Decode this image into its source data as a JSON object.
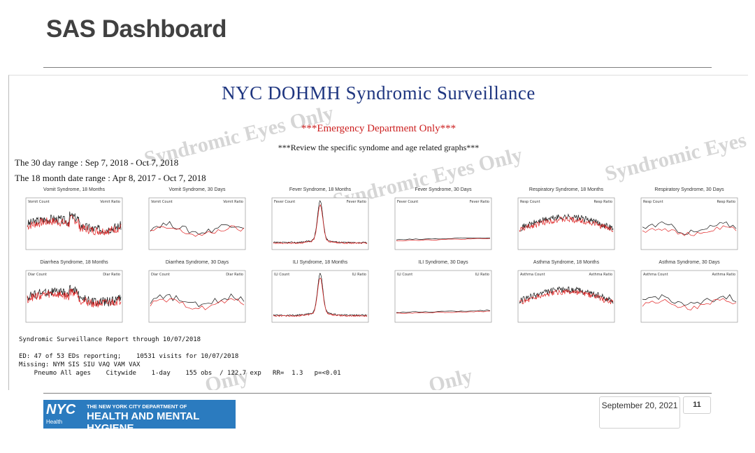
{
  "slide": {
    "title": "SAS Dashboard",
    "date": "September 20, 2021",
    "page_number": "11"
  },
  "dashboard": {
    "title": "NYC DOHMH Syndromic Surveillance",
    "subtitle_red": "***Emergency Department Only***",
    "subtitle": "***Review the specific syndome and age related graphs***",
    "range_30": "The 30 day range : Sep 7, 2018 - Oct 7, 2018",
    "range_18": "The 18 month date range : Apr 8, 2017 - Oct 7, 2018",
    "watermark_text": "Syndromic Eyes Only",
    "charts": [
      {
        "title": "Vomit Syndrome, 18 Months",
        "legend_left": "Vomit Count",
        "legend_right": "Vomit Ratio",
        "type": "long"
      },
      {
        "title": "Vomit Syndrome, 30 Days",
        "legend_left": "Vomit Count",
        "legend_right": "Vomit Ratio",
        "type": "short"
      },
      {
        "title": "Fever Syndrome, 18 Months",
        "legend_left": "Fever Count",
        "legend_right": "Fever Ratio",
        "type": "peak"
      },
      {
        "title": "Fever Syndrome, 30 Days",
        "legend_left": "Fever Count",
        "legend_right": "Fever Ratio",
        "type": "flat"
      },
      {
        "title": "Respiratory Syndrome, 18 Months",
        "legend_left": "Resp Count",
        "legend_right": "Resp Ratio",
        "type": "seasonal"
      },
      {
        "title": "Respiratory Syndrome, 30 Days",
        "legend_left": "Resp Count",
        "legend_right": "Resp Ratio",
        "type": "short"
      },
      {
        "title": "Diarrhea Syndrome, 18 Months",
        "legend_left": "Diar Count",
        "legend_right": "Diar Ratio",
        "type": "long"
      },
      {
        "title": "Diarrhea Syndrome, 30 Days",
        "legend_left": "Diar Count",
        "legend_right": "Diar Ratio",
        "type": "short"
      },
      {
        "title": "ILI Syndrome, 18 Months",
        "legend_left": "ILI Count",
        "legend_right": "ILI Ratio",
        "type": "peak"
      },
      {
        "title": "ILI Syndrome, 30 Days",
        "legend_left": "ILI Count",
        "legend_right": "ILI Ratio",
        "type": "flat"
      },
      {
        "title": "Asthma Syndrome, 18 Months",
        "legend_left": "Asthma Count",
        "legend_right": "Asthma Ratio",
        "type": "seasonal"
      },
      {
        "title": "Asthma Syndrome, 30 Days",
        "legend_left": "Asthma Count",
        "legend_right": "Asthma Ratio",
        "type": "short"
      }
    ],
    "report_lines": [
      "Syndromic Surveillance Report through 10/07/2018",
      "",
      "ED: 47 of 53 EDs reporting;    10531 visits for 10/07/2018",
      "Missing: NYM SIS SIU VAQ VAM VAX",
      "    Pneumo All ages    Citywide    1-day    155 obs  / 122.7 exp   RR=  1.3   p=<0.01"
    ]
  },
  "logo": {
    "mark": "NYC",
    "mark_sub": "Health",
    "line1": "THE NEW YORK CITY DEPARTMENT OF",
    "line2": "HEALTH AND MENTAL HYGIENE"
  },
  "colors": {
    "title_blue": "#1f3680",
    "alert_red": "#cc1f1f",
    "count_series": "#111111",
    "ratio_series": "#e02020",
    "logo_blue": "#2b7bbf"
  }
}
